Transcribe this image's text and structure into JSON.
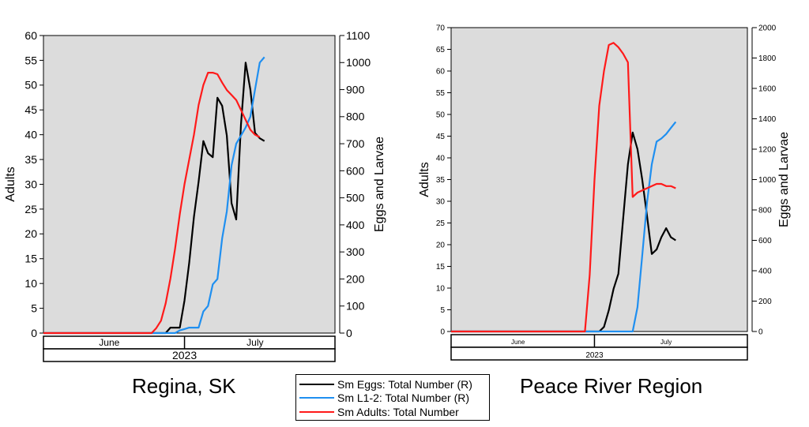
{
  "legend": [
    {
      "label": "Sm Eggs: Total Number (R)",
      "color": "#000000"
    },
    {
      "label": "Sm L1-2: Total Number (R)",
      "color": "#1f8ff0"
    },
    {
      "label": "Sm Adults: Total Number",
      "color": "#ff1a1a"
    }
  ],
  "chart_data": [
    {
      "type": "line",
      "title": "Regina, SK",
      "ylabel": "Adults",
      "y2label": "Eggs and Larvae",
      "ylim": [
        0,
        60
      ],
      "y2lim": [
        0,
        1100
      ],
      "yticks": [
        "0",
        "5",
        "10",
        "15",
        "20",
        "25",
        "30",
        "35",
        "40",
        "45",
        "50",
        "55",
        "60"
      ],
      "y2ticks": [
        "0",
        "100",
        "200",
        "300",
        "400",
        "500",
        "600",
        "700",
        "800",
        "900",
        "1000",
        "1100"
      ],
      "xlim": [
        0,
        62
      ],
      "month_labels": [
        {
          "label": "June",
          "x": 14
        },
        {
          "label": "July",
          "x": 45
        }
      ],
      "year_label": "2023",
      "plot_bg": "#dcdcdc",
      "series": [
        {
          "name": "Sm Eggs: Total Number (R)",
          "axis": "right",
          "color": "#000000",
          "x": [
            0,
            25,
            26,
            27,
            28,
            29,
            30,
            31,
            32,
            33,
            34,
            35,
            36,
            37,
            38,
            39,
            40,
            41,
            42,
            43,
            44,
            45,
            46,
            47
          ],
          "y": [
            0,
            0,
            0,
            20,
            20,
            20,
            120,
            260,
            430,
            560,
            710,
            665,
            650,
            870,
            840,
            730,
            480,
            420,
            770,
            1000,
            900,
            740,
            720,
            710
          ]
        },
        {
          "name": "Sm L1-2: Total Number (R)",
          "axis": "right",
          "color": "#1f8ff0",
          "x": [
            0,
            24,
            26,
            28,
            29,
            30,
            31,
            32,
            33,
            34,
            35,
            36,
            37,
            38,
            39,
            40,
            41,
            42,
            43,
            44,
            45,
            46,
            47
          ],
          "y": [
            0,
            0,
            0,
            0,
            10,
            15,
            20,
            20,
            20,
            80,
            100,
            180,
            200,
            350,
            450,
            620,
            700,
            730,
            760,
            800,
            900,
            1000,
            1020
          ]
        },
        {
          "name": "Sm Adults: Total Number",
          "axis": "left",
          "color": "#ff1a1a",
          "x": [
            0,
            23,
            24,
            25,
            26,
            27,
            28,
            29,
            30,
            31,
            32,
            33,
            34,
            35,
            36,
            37,
            38,
            39,
            40,
            41,
            42,
            43,
            44,
            45,
            46
          ],
          "y": [
            0,
            0,
            1,
            2.5,
            6,
            11,
            17,
            24,
            30,
            35,
            40,
            46,
            50,
            52.5,
            52.5,
            52.2,
            50.5,
            49,
            48,
            47,
            45,
            43,
            41,
            40,
            39.5
          ]
        }
      ]
    },
    {
      "type": "line",
      "title": "Peace River Region",
      "ylabel": "Adults",
      "y2label": "Eggs and Larvae",
      "ylim": [
        0,
        70
      ],
      "y2lim": [
        0,
        2000
      ],
      "yticks": [
        "0",
        "5",
        "10",
        "15",
        "20",
        "25",
        "30",
        "35",
        "40",
        "45",
        "50",
        "55",
        "60",
        "65",
        "70"
      ],
      "y2ticks": [
        "0",
        "200",
        "400",
        "600",
        "800",
        "1000",
        "1200",
        "1400",
        "1600",
        "1800",
        "2000"
      ],
      "xlim": [
        0,
        62
      ],
      "month_labels": [
        {
          "label": "June",
          "x": 14
        },
        {
          "label": "July",
          "x": 45
        }
      ],
      "year_label": "2023",
      "plot_bg": "#dcdcdc",
      "series": [
        {
          "name": "Sm Eggs: Total Number (R)",
          "axis": "right",
          "color": "#000000",
          "x": [
            0,
            31,
            32,
            33,
            34,
            35,
            36,
            37,
            38,
            39,
            40,
            41,
            42,
            43,
            44,
            45,
            46,
            47
          ],
          "y": [
            0,
            0,
            30,
            140,
            280,
            380,
            740,
            1100,
            1310,
            1200,
            1000,
            760,
            510,
            540,
            620,
            680,
            620,
            600
          ]
        },
        {
          "name": "Sm L1-2: Total Number (R)",
          "axis": "right",
          "color": "#1f8ff0",
          "x": [
            0,
            38,
            39,
            40,
            41,
            42,
            43,
            44,
            45,
            46,
            47
          ],
          "y": [
            0,
            0,
            160,
            500,
            850,
            1100,
            1250,
            1270,
            1300,
            1340,
            1380
          ]
        },
        {
          "name": "Sm Adults: Total Number",
          "axis": "left",
          "color": "#ff1a1a",
          "x": [
            0,
            28,
            29,
            30,
            31,
            32,
            33,
            34,
            35,
            36,
            37,
            38,
            39,
            40,
            41,
            42,
            43,
            44,
            45,
            46,
            47
          ],
          "y": [
            0,
            0,
            13,
            35,
            52,
            60,
            66,
            66.5,
            65.5,
            64,
            62,
            31,
            32,
            32.5,
            33,
            33.5,
            34,
            34,
            33.5,
            33.5,
            33
          ]
        }
      ]
    }
  ]
}
